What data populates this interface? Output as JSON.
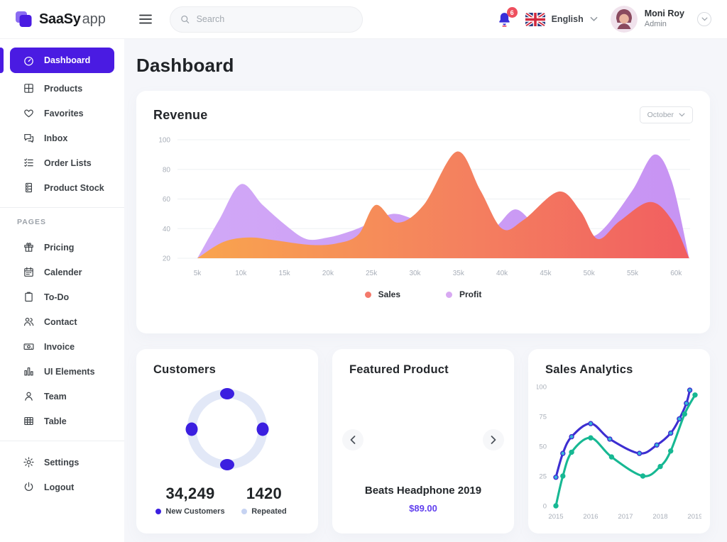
{
  "header": {
    "logo": {
      "brand_bold": "SaaSy",
      "brand_light": "app"
    },
    "search": {
      "placeholder": "Search"
    },
    "notifications": {
      "count": "6"
    },
    "language": {
      "label": "English"
    },
    "user": {
      "name": "Moni Roy",
      "role": "Admin"
    }
  },
  "sidebar": {
    "sections": [
      {
        "title": "",
        "items": [
          {
            "label": "Dashboard",
            "icon": "dashboard-icon",
            "active": true
          },
          {
            "label": "Products",
            "icon": "products-icon"
          },
          {
            "label": "Favorites",
            "icon": "favorites-icon"
          },
          {
            "label": "Inbox",
            "icon": "inbox-icon"
          },
          {
            "label": "Order Lists",
            "icon": "order-lists-icon"
          },
          {
            "label": "Product Stock",
            "icon": "product-stock-icon"
          }
        ]
      },
      {
        "title": "PAGES",
        "items": [
          {
            "label": "Pricing",
            "icon": "pricing-icon"
          },
          {
            "label": "Calender",
            "icon": "calendar-icon"
          },
          {
            "label": "To-Do",
            "icon": "todo-icon"
          },
          {
            "label": "Contact",
            "icon": "contact-icon"
          },
          {
            "label": "Invoice",
            "icon": "invoice-icon"
          },
          {
            "label": "UI Elements",
            "icon": "ui-elements-icon"
          },
          {
            "label": "Team",
            "icon": "team-icon"
          },
          {
            "label": "Table",
            "icon": "table-icon"
          }
        ]
      },
      {
        "title": "",
        "items": [
          {
            "label": "Settings",
            "icon": "settings-icon"
          },
          {
            "label": "Logout",
            "icon": "logout-icon"
          }
        ]
      }
    ]
  },
  "page": {
    "title": "Dashboard"
  },
  "colors": {
    "accent": "#4A1BE2",
    "badge": "#EE4F5E"
  },
  "revenue_card": {
    "title": "Revenue",
    "period_selector": "October",
    "legend": [
      {
        "label": "Sales",
        "color": "#F4796B"
      },
      {
        "label": "Profit",
        "color": "#D8A9F2"
      }
    ]
  },
  "customers_card": {
    "title": "Customers",
    "ring_color": "#E2E8F7",
    "dot_color": "#3B1FE0",
    "stats": [
      {
        "value": "34,249",
        "label": "New Customers",
        "color": "#3B1FE0"
      },
      {
        "value": "1420",
        "label": "Repeated",
        "color": "#C6D3F2"
      }
    ]
  },
  "featured_card": {
    "title": "Featured Product",
    "product_name": "Beats Headphone 2019",
    "price": "$89.00",
    "price_color": "#6140EE"
  },
  "analytics_card": {
    "title": "Sales Analytics"
  },
  "chart_data": [
    {
      "id": "revenue",
      "type": "area",
      "title": "Revenue",
      "period": "October",
      "x_ticks": [
        "5k",
        "10k",
        "15k",
        "20k",
        "25k",
        "30k",
        "35k",
        "40k",
        "45k",
        "50k",
        "55k",
        "60k"
      ],
      "y_ticks": [
        100,
        80,
        60,
        40,
        20
      ],
      "ylim": [
        20,
        100
      ],
      "grid": true,
      "legend_position": "bottom",
      "series": [
        {
          "name": "Sales",
          "color_start": "#F9A44E",
          "color_end": "#F15E60",
          "points": [
            [
              5,
              20
            ],
            [
              8,
              31
            ],
            [
              11,
              34
            ],
            [
              14,
              32
            ],
            [
              18,
              29
            ],
            [
              21,
              30
            ],
            [
              23.5,
              36
            ],
            [
              25.5,
              56
            ],
            [
              28,
              44
            ],
            [
              31,
              56
            ],
            [
              34.8,
              92
            ],
            [
              37.5,
              66
            ],
            [
              40,
              40
            ],
            [
              42.5,
              46
            ],
            [
              46.5,
              65
            ],
            [
              49,
              52
            ],
            [
              51,
              33
            ],
            [
              53.5,
              45
            ],
            [
              57,
              58
            ],
            [
              59.5,
              46
            ],
            [
              61.5,
              20
            ]
          ]
        },
        {
          "name": "Profit",
          "color_start": "#D1A8F7",
          "color_end": "#C793F3",
          "points": [
            [
              5,
              20
            ],
            [
              7.5,
              46
            ],
            [
              10,
              70
            ],
            [
              12.5,
              56
            ],
            [
              15,
              43
            ],
            [
              17.5,
              33
            ],
            [
              20,
              34
            ],
            [
              22.5,
              38
            ],
            [
              25,
              44
            ],
            [
              27.5,
              50
            ],
            [
              30,
              46
            ],
            [
              33,
              39
            ],
            [
              36,
              37
            ],
            [
              39,
              40
            ],
            [
              41.5,
              53
            ],
            [
              44,
              42
            ],
            [
              47,
              36
            ],
            [
              50,
              34
            ],
            [
              52,
              42
            ],
            [
              55,
              66
            ],
            [
              57.5,
              90
            ],
            [
              59.5,
              72
            ],
            [
              61.5,
              20
            ]
          ]
        }
      ]
    },
    {
      "id": "sales_analytics",
      "type": "line",
      "title": "Sales Analytics",
      "x_ticks": [
        "2015",
        "2016",
        "2017",
        "2018",
        "2019"
      ],
      "y_ticks": [
        100,
        75,
        50,
        25,
        0
      ],
      "ylim": [
        0,
        100
      ],
      "grid": false,
      "series": [
        {
          "name": "series-indigo",
          "color": "#3D2ED1",
          "marker_fill": "#35B7D9",
          "points": [
            [
              2015,
              24
            ],
            [
              2015.2,
              44
            ],
            [
              2015.45,
              58
            ],
            [
              2016,
              69
            ],
            [
              2016.55,
              56
            ],
            [
              2017.4,
              44
            ],
            [
              2017.9,
              51
            ],
            [
              2018.3,
              61
            ],
            [
              2018.55,
              73
            ],
            [
              2018.75,
              86
            ],
            [
              2018.85,
              97
            ]
          ]
        },
        {
          "name": "series-teal",
          "color": "#17B893",
          "marker_fill": "#17B893",
          "points": [
            [
              2015,
              0
            ],
            [
              2015.2,
              25
            ],
            [
              2015.45,
              45
            ],
            [
              2016,
              57
            ],
            [
              2016.6,
              41
            ],
            [
              2017.5,
              25
            ],
            [
              2018,
              33
            ],
            [
              2018.3,
              46
            ],
            [
              2018.7,
              77
            ],
            [
              2019,
              93
            ]
          ]
        }
      ]
    },
    {
      "id": "customers_donut",
      "type": "pie",
      "title": "Customers",
      "values": [
        {
          "label": "New Customers",
          "value": 34249,
          "color": "#3B1FE0"
        },
        {
          "label": "Repeated",
          "value": 1420,
          "color": "#C6D3F2"
        }
      ]
    }
  ]
}
